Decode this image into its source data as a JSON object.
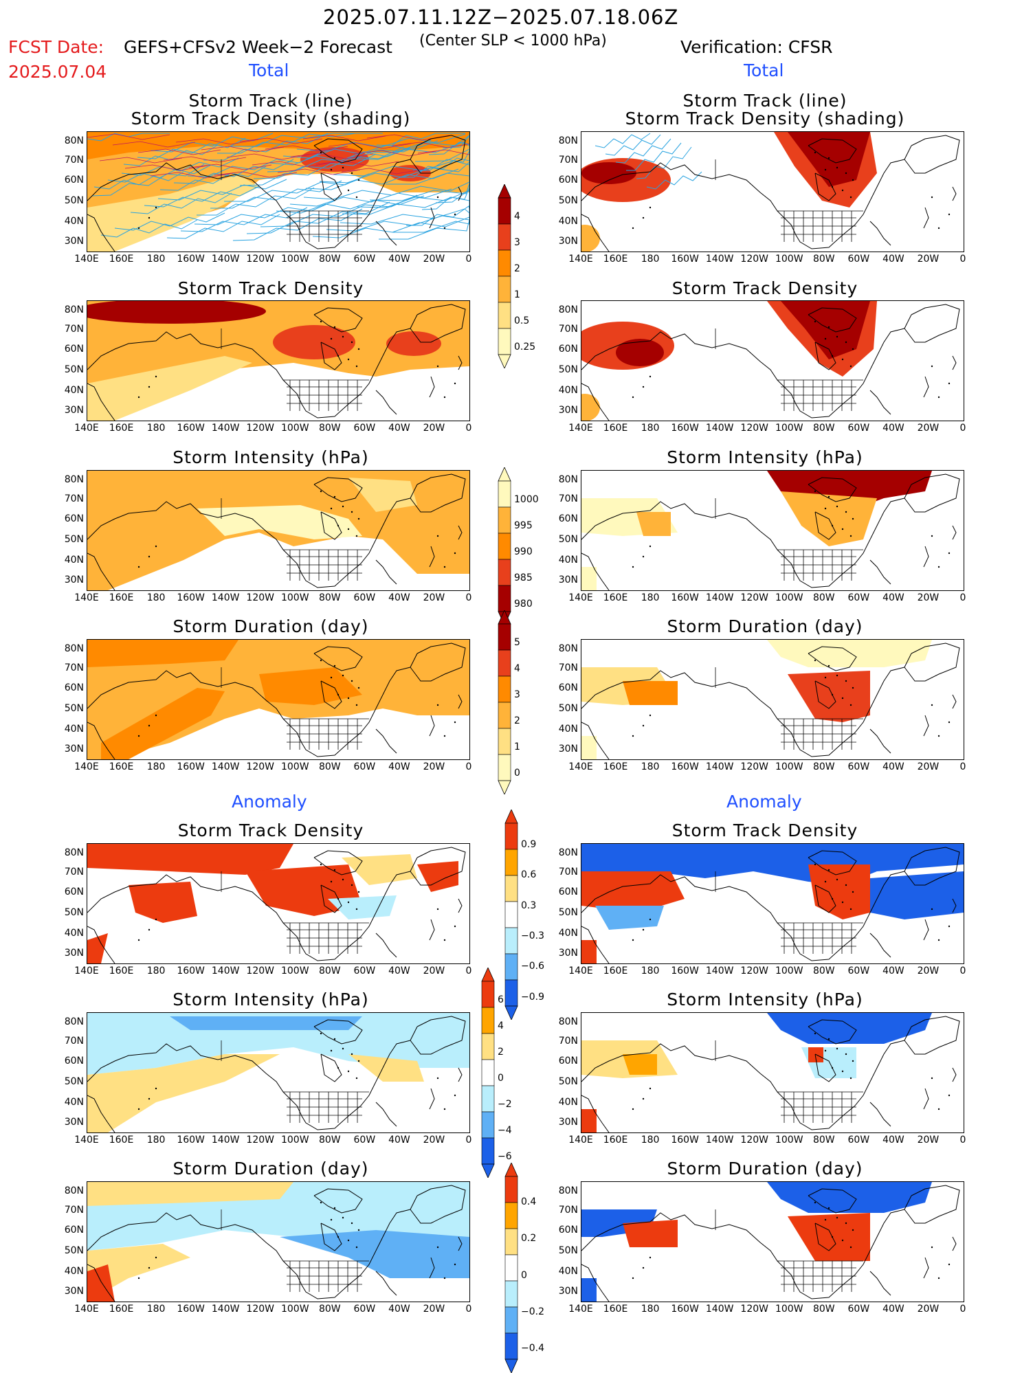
{
  "header": {
    "period": "2025.07.11.12Z−2025.07.18.06Z",
    "fcst_label": "FCST Date:",
    "fcst_date": "2025.07.04",
    "forecast_name": "GEFS+CFSv2 Week−2 Forecast",
    "criterion": "(Center SLP < 1000 hPa)",
    "verification": "Verification: CFSR"
  },
  "sections": {
    "total_left": "Total",
    "total_right": "Total",
    "anomaly_left": "Anomaly",
    "anomaly_right": "Anomaly"
  },
  "panel_titles": {
    "r1": [
      "Storm Track (line)",
      "Storm Track Density (shading)"
    ],
    "r2": "Storm Track Density",
    "r3": "Storm Intensity (hPa)",
    "r4": "Storm Duration (day)",
    "r5": "Storm Track Density",
    "r6": "Storm Intensity (hPa)",
    "r7": "Storm Duration (day)"
  },
  "axes": {
    "lat_labels": [
      "80N",
      "70N",
      "60N",
      "50N",
      "40N",
      "30N"
    ],
    "lon_labels": [
      "140E",
      "160E",
      "180",
      "160W",
      "140W",
      "120W",
      "100W",
      "80W",
      "60W",
      "40W",
      "20W",
      "0"
    ]
  },
  "colorbars": {
    "density": [
      "4",
      "3",
      "2",
      "1",
      "0.5",
      "0.25"
    ],
    "intensity": [
      "1000",
      "995",
      "990",
      "985",
      "980"
    ],
    "duration": [
      "5",
      "4",
      "3",
      "2",
      "1",
      "0"
    ],
    "density_anom": [
      "0.9",
      "0.6",
      "0.3",
      "−0.3",
      "−0.6",
      "−0.9"
    ],
    "intensity_anom": [
      "6",
      "4",
      "2",
      "0",
      "−2",
      "−4",
      "−6"
    ],
    "duration_anom": [
      "0.4",
      "0.2",
      "0",
      "−0.2",
      "−0.4"
    ]
  },
  "colors": {
    "warm_scale": [
      "#fff9bd",
      "#ffe083",
      "#ffb339",
      "#ff8a00",
      "#e8401c",
      "#a50000"
    ],
    "diverging_warm": [
      "#ffe083",
      "#ffa500",
      "#ec3b0f"
    ],
    "diverging_cool": [
      "#b9eefc",
      "#5fb0f5",
      "#1c60e8"
    ],
    "track_line": "#29a3e0",
    "header_red": "#e41a1c",
    "header_blue": "#1f4fff"
  }
}
